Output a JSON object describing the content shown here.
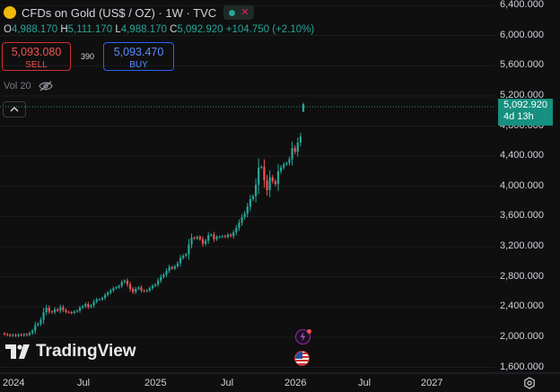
{
  "header": {
    "title": "CFDs on Gold (US$ / OZ) · 1W · TVC"
  },
  "ohlc": {
    "o_label": "O",
    "o": "4,988.170",
    "h_label": "H",
    "h": "5,111.170",
    "l_label": "L",
    "l": "4,988.170",
    "c_label": "C",
    "c": "5,092.920",
    "change": "+104.750 (+2.10%)"
  },
  "trade": {
    "sell_price": "5,093.080",
    "sell_label": "SELL",
    "spread": "390",
    "buy_price": "5,093.470",
    "buy_label": "BUY"
  },
  "volume": {
    "label": "Vol 20"
  },
  "brand": {
    "name": "TradingView"
  },
  "price_tag": {
    "price": "5,092.920",
    "countdown": "4d 13h"
  },
  "colors": {
    "up": "#26a69a",
    "down": "#ef5350",
    "background": "#0f0f0f",
    "tag": "#16907f"
  },
  "icons": [
    "gold-coin-icon",
    "eye-off-icon",
    "chevron-up-icon",
    "lightning-icon",
    "us-flag-icon",
    "settings-icon"
  ],
  "chart_data": {
    "type": "candlestick",
    "symbol": "CFDs on Gold (US$ / OZ)",
    "interval": "1W",
    "y_ticks": [
      "6,400.000",
      "6,000.000",
      "5,600.000",
      "5,200.000",
      "4,800.000",
      "4,400.000",
      "4,000.000",
      "3,600.000",
      "3,200.000",
      "2,800.000",
      "2,400.000",
      "2,000.000",
      "1,600.000"
    ],
    "x_ticks": [
      "2024",
      "Jul",
      "2025",
      "Jul",
      "2026",
      "Jul",
      "2027"
    ],
    "ylim": [
      1600,
      6400
    ],
    "last_price": 5092.92,
    "closes": [
      2040,
      2030,
      2020,
      2032,
      2018,
      2034,
      2025,
      2040,
      2030,
      2055,
      2085,
      2160,
      2180,
      2230,
      2330,
      2390,
      2340,
      2330,
      2370,
      2350,
      2400,
      2360,
      2335,
      2330,
      2320,
      2340,
      2350,
      2390,
      2410,
      2440,
      2400,
      2420,
      2470,
      2500,
      2500,
      2520,
      2560,
      2590,
      2620,
      2650,
      2660,
      2680,
      2730,
      2750,
      2700,
      2640,
      2600,
      2640,
      2660,
      2620,
      2610,
      2620,
      2650,
      2680,
      2700,
      2750,
      2800,
      2830,
      2880,
      2930,
      2910,
      2940,
      2980,
      3050,
      3080,
      3100,
      3230,
      3320,
      3310,
      3330,
      3300,
      3240,
      3280,
      3350,
      3360,
      3300,
      3330,
      3330,
      3340,
      3330,
      3360,
      3340,
      3390,
      3450,
      3520,
      3590,
      3640,
      3730,
      3830,
      3870,
      4020,
      4250,
      4260,
      4080,
      3950,
      4120,
      4070,
      4030,
      4200,
      4250,
      4290,
      4310,
      4360,
      4510,
      4460,
      4580,
      4660,
      5090
    ],
    "series": [
      {
        "name": "CFDs on Gold (US$ / OZ)"
      }
    ]
  }
}
